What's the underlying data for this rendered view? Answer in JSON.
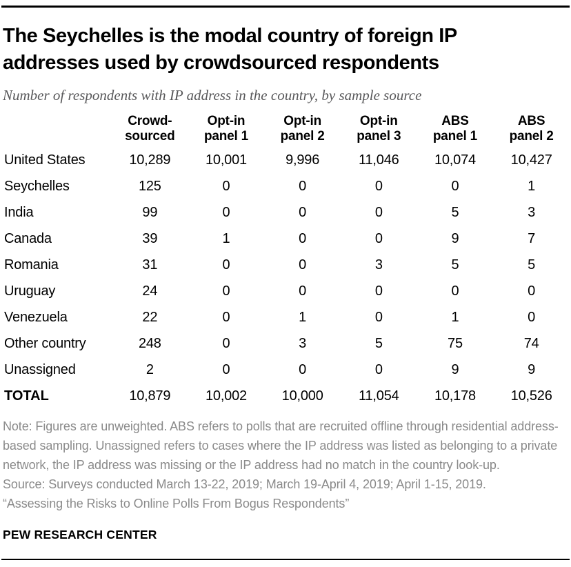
{
  "header": {
    "title": "The Seychelles is the modal country of foreign IP addresses used by crowdsourced respondents",
    "subtitle": "Number of respondents with IP address in the country, by sample source"
  },
  "table": {
    "columns": [
      "Crowd-\nsourced",
      "Opt-in\npanel 1",
      "Opt-in\npanel 2",
      "Opt-in\npanel 3",
      "ABS\npanel 1",
      "ABS\npanel 2"
    ],
    "rows": [
      {
        "label": "United States",
        "values": [
          "10,289",
          "10,001",
          "9,996",
          "11,046",
          "10,074",
          "10,427"
        ]
      },
      {
        "label": "Seychelles",
        "values": [
          "125",
          "0",
          "0",
          "0",
          "0",
          "1"
        ]
      },
      {
        "label": "India",
        "values": [
          "99",
          "0",
          "0",
          "0",
          "5",
          "3"
        ]
      },
      {
        "label": "Canada",
        "values": [
          "39",
          "1",
          "0",
          "0",
          "9",
          "7"
        ]
      },
      {
        "label": "Romania",
        "values": [
          "31",
          "0",
          "0",
          "3",
          "5",
          "5"
        ]
      },
      {
        "label": "Uruguay",
        "values": [
          "24",
          "0",
          "0",
          "0",
          "0",
          "0"
        ]
      },
      {
        "label": "Venezuela",
        "values": [
          "22",
          "0",
          "1",
          "0",
          "1",
          "0"
        ]
      },
      {
        "label": "Other country",
        "values": [
          "248",
          "0",
          "3",
          "5",
          "75",
          "74"
        ]
      },
      {
        "label": "Unassigned",
        "values": [
          "2",
          "0",
          "0",
          "0",
          "9",
          "9"
        ]
      },
      {
        "label": "TOTAL",
        "values": [
          "10,879",
          "10,002",
          "10,000",
          "11,054",
          "10,178",
          "10,526"
        ],
        "total": true
      }
    ]
  },
  "chart_data": {
    "type": "table",
    "title": "The Seychelles is the modal country of foreign IP addresses used by crowdsourced respondents",
    "subtitle": "Number of respondents with IP address in the country, by sample source",
    "columns": [
      "Crowd-sourced",
      "Opt-in panel 1",
      "Opt-in panel 2",
      "Opt-in panel 3",
      "ABS panel 1",
      "ABS panel 2"
    ],
    "rows": [
      {
        "label": "United States",
        "values": [
          10289,
          10001,
          9996,
          11046,
          10074,
          10427
        ]
      },
      {
        "label": "Seychelles",
        "values": [
          125,
          0,
          0,
          0,
          0,
          1
        ]
      },
      {
        "label": "India",
        "values": [
          99,
          0,
          0,
          0,
          5,
          3
        ]
      },
      {
        "label": "Canada",
        "values": [
          39,
          1,
          0,
          0,
          9,
          7
        ]
      },
      {
        "label": "Romania",
        "values": [
          31,
          0,
          0,
          3,
          5,
          5
        ]
      },
      {
        "label": "Uruguay",
        "values": [
          24,
          0,
          0,
          0,
          0,
          0
        ]
      },
      {
        "label": "Venezuela",
        "values": [
          22,
          0,
          1,
          0,
          1,
          0
        ]
      },
      {
        "label": "Other country",
        "values": [
          248,
          0,
          3,
          5,
          75,
          74
        ]
      },
      {
        "label": "Unassigned",
        "values": [
          2,
          0,
          0,
          0,
          9,
          9
        ]
      },
      {
        "label": "TOTAL",
        "values": [
          10879,
          10002,
          10000,
          11054,
          10178,
          10526
        ]
      }
    ]
  },
  "footer": {
    "note": "Note: Figures are unweighted. ABS refers to polls that are recruited offline through residential address-based sampling. Unassigned refers to cases where the IP address was listed as belonging to a private network, the IP address was missing or the IP address had no match in the country look-up.",
    "source": "Source: Surveys conducted March 13-22, 2019; March 19-April 4, 2019; April 1-15, 2019.",
    "report": "“Assessing the Risks to Online Polls From Bogus Respondents”",
    "brand": "PEW RESEARCH CENTER"
  },
  "colors": {
    "text": "#000000",
    "subtitle_gray": "#58585a",
    "note_gray": "#8a8a8a",
    "rule": "#000000"
  }
}
